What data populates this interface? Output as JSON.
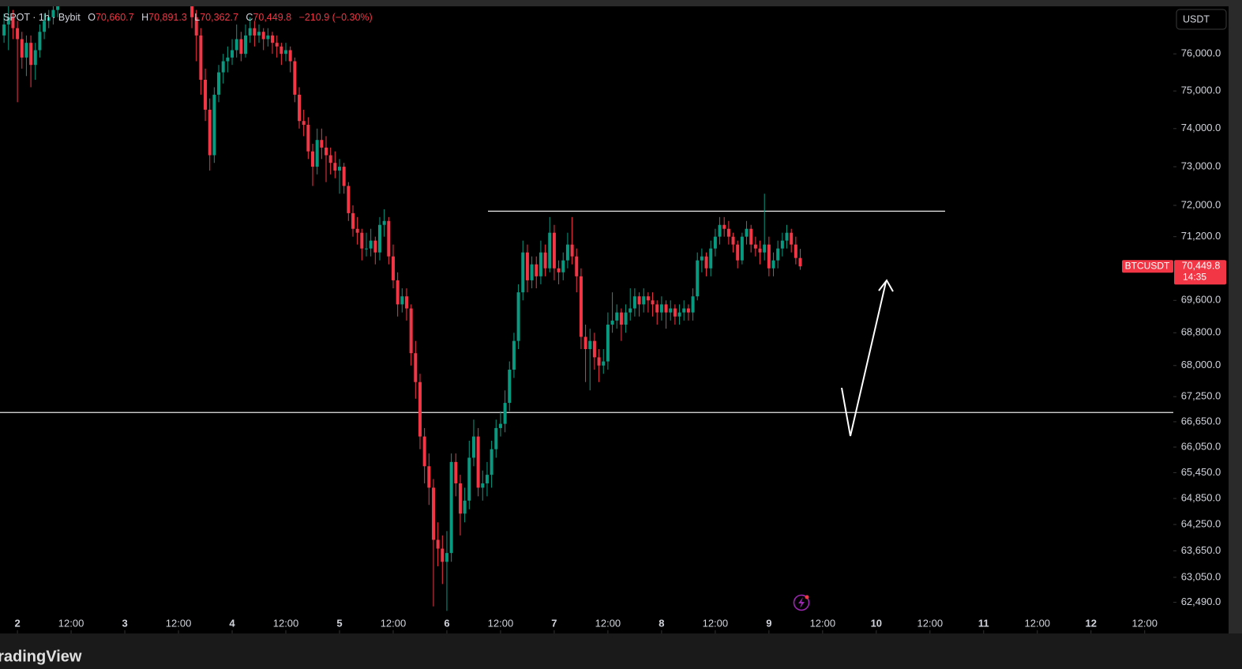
{
  "chart_data": {
    "type": "candlestick",
    "header": {
      "symbol": "SPOT · 1h · Bybit",
      "ohlc_letters": [
        "O",
        "H",
        "L",
        "C"
      ],
      "ohlc_texts": [
        "70,660.7",
        "70,891.3",
        "70,362.7",
        "70,449.8"
      ],
      "change": "−210.9 (−0.30%)"
    },
    "currency": "USDT",
    "brand": "TradingView",
    "log_scale": true,
    "up_color": "#089981",
    "down_color": "#f23645",
    "x": [
      -3,
      -2,
      -1,
      0,
      1,
      2,
      3,
      4,
      5,
      6,
      7,
      8,
      9,
      39,
      40,
      41,
      42,
      43,
      44,
      45,
      46,
      47,
      48,
      49,
      50,
      51,
      52,
      53,
      54,
      55,
      56,
      57,
      58,
      59,
      60,
      61,
      62,
      63,
      64,
      65,
      66,
      67,
      68,
      69,
      70,
      71,
      72,
      73,
      74,
      75,
      76,
      77,
      78,
      79,
      80,
      81,
      82,
      83,
      84,
      85,
      86,
      87,
      88,
      89,
      90,
      91,
      92,
      93,
      94,
      95,
      96,
      97,
      98,
      99,
      100,
      101,
      102,
      103,
      104,
      105,
      106,
      107,
      108,
      109,
      110,
      111,
      112,
      113,
      114,
      115,
      116,
      117,
      118,
      119,
      120,
      121,
      122,
      123,
      124,
      125,
      126,
      127,
      128,
      129,
      130,
      131,
      132,
      133,
      134,
      135,
      136,
      137,
      138,
      139,
      140,
      141,
      142,
      143,
      144,
      145,
      146,
      147,
      148,
      149,
      150,
      151,
      152,
      153,
      154,
      155,
      156,
      157,
      158,
      159,
      160,
      161,
      162,
      163,
      164,
      165,
      166,
      167,
      168,
      169,
      170,
      171,
      172,
      173,
      174,
      175
    ],
    "ohlc": [
      [
        76500,
        77100,
        76300,
        76800
      ],
      [
        76800,
        77300,
        76100,
        77000
      ],
      [
        77000,
        77200,
        76400,
        76700
      ],
      [
        76700,
        76900,
        74700,
        76400
      ],
      [
        76400,
        76600,
        75600,
        75900
      ],
      [
        75900,
        76500,
        75400,
        76300
      ],
      [
        76300,
        76500,
        75100,
        75700
      ],
      [
        75700,
        76300,
        75300,
        76100
      ],
      [
        76100,
        76800,
        75900,
        76600
      ],
      [
        76600,
        77100,
        76400,
        76900
      ],
      [
        76900,
        77200,
        76700,
        77000
      ],
      [
        77000,
        77400,
        76800,
        77200
      ],
      [
        77200,
        77600,
        77000,
        77400
      ],
      [
        77400,
        77800,
        76700,
        77000
      ],
      [
        77000,
        77200,
        75800,
        76500
      ],
      [
        76500,
        76700,
        74900,
        75300
      ],
      [
        75300,
        75600,
        74200,
        74500
      ],
      [
        74500,
        74800,
        72900,
        73300
      ],
      [
        73300,
        75100,
        73100,
        74900
      ],
      [
        74900,
        75700,
        74700,
        75500
      ],
      [
        75500,
        76000,
        75200,
        75800
      ],
      [
        75800,
        76200,
        75500,
        75900
      ],
      [
        75900,
        76400,
        75700,
        76100
      ],
      [
        76100,
        76800,
        75900,
        76400
      ],
      [
        76400,
        76600,
        75800,
        76000
      ],
      [
        76000,
        76800,
        75900,
        76500
      ],
      [
        76500,
        77000,
        76300,
        76700
      ],
      [
        76700,
        76900,
        76200,
        76500
      ],
      [
        76500,
        76800,
        76300,
        76600
      ],
      [
        76600,
        76700,
        76100,
        76400
      ],
      [
        76400,
        76700,
        76200,
        76500
      ],
      [
        76500,
        76600,
        76000,
        76300
      ],
      [
        76300,
        76500,
        75900,
        76200
      ],
      [
        76200,
        76300,
        75700,
        76000
      ],
      [
        76000,
        76300,
        75800,
        76100
      ],
      [
        76100,
        76200,
        75500,
        75800
      ],
      [
        75800,
        75900,
        74700,
        74900
      ],
      [
        74900,
        75100,
        74000,
        74200
      ],
      [
        74200,
        74500,
        73800,
        74100
      ],
      [
        74100,
        74300,
        73200,
        73400
      ],
      [
        73400,
        73600,
        72500,
        73000
      ],
      [
        73000,
        74000,
        72800,
        73700
      ],
      [
        73700,
        74000,
        73200,
        73500
      ],
      [
        73500,
        73800,
        72600,
        73300
      ],
      [
        73300,
        73500,
        72800,
        73100
      ],
      [
        73100,
        73400,
        72700,
        72900
      ],
      [
        72900,
        73200,
        72300,
        73000
      ],
      [
        73000,
        73100,
        72300,
        72500
      ],
      [
        72500,
        72600,
        71600,
        71800
      ],
      [
        71800,
        72000,
        71200,
        71400
      ],
      [
        71400,
        71700,
        71000,
        71300
      ],
      [
        71300,
        71400,
        70600,
        70900
      ],
      [
        70900,
        71300,
        70700,
        70900
      ],
      [
        70900,
        71400,
        70700,
        71100
      ],
      [
        71100,
        71200,
        70500,
        70800
      ],
      [
        70800,
        71700,
        70600,
        71500
      ],
      [
        71500,
        71900,
        71200,
        71600
      ],
      [
        71600,
        71700,
        70500,
        70700
      ],
      [
        70700,
        71000,
        69900,
        70100
      ],
      [
        70100,
        70300,
        69200,
        69500
      ],
      [
        69500,
        69900,
        69300,
        69700
      ],
      [
        69700,
        69900,
        69100,
        69400
      ],
      [
        69400,
        69500,
        68000,
        68300
      ],
      [
        68300,
        68600,
        67200,
        67600
      ],
      [
        67600,
        67800,
        66000,
        66300
      ],
      [
        66300,
        66500,
        65200,
        65600
      ],
      [
        65600,
        65900,
        64700,
        65100
      ],
      [
        65100,
        65300,
        62400,
        63900
      ],
      [
        63900,
        64300,
        63300,
        63700
      ],
      [
        63700,
        64000,
        62900,
        63400
      ],
      [
        63400,
        64100,
        62300,
        63600
      ],
      [
        63600,
        65900,
        63400,
        65700
      ],
      [
        65700,
        65900,
        64900,
        65200
      ],
      [
        65200,
        65400,
        64000,
        64500
      ],
      [
        64500,
        65100,
        64300,
        64800
      ],
      [
        64800,
        66200,
        64600,
        65800
      ],
      [
        65800,
        66700,
        65600,
        66300
      ],
      [
        66300,
        66500,
        64900,
        65100
      ],
      [
        65100,
        65500,
        64800,
        65200
      ],
      [
        65200,
        65700,
        64900,
        65400
      ],
      [
        65400,
        66200,
        65100,
        66000
      ],
      [
        66000,
        66700,
        65800,
        66500
      ],
      [
        66500,
        66900,
        66300,
        66600
      ],
      [
        66600,
        67400,
        66400,
        67100
      ],
      [
        67100,
        68100,
        66900,
        67900
      ],
      [
        67900,
        68800,
        67700,
        68600
      ],
      [
        68600,
        70000,
        68400,
        69800
      ],
      [
        69800,
        71100,
        69600,
        70800
      ],
      [
        70800,
        71000,
        69800,
        70100
      ],
      [
        70100,
        70700,
        69900,
        70500
      ],
      [
        70500,
        70700,
        69900,
        70200
      ],
      [
        70200,
        71100,
        70000,
        70800
      ],
      [
        70800,
        71000,
        70200,
        70400
      ],
      [
        70400,
        71700,
        70300,
        71300
      ],
      [
        71300,
        71500,
        70100,
        70400
      ],
      [
        70400,
        70600,
        70000,
        70300
      ],
      [
        70300,
        70800,
        70100,
        70600
      ],
      [
        70600,
        71300,
        70400,
        71000
      ],
      [
        71000,
        71700,
        70500,
        70700
      ],
      [
        70700,
        70900,
        69800,
        70200
      ],
      [
        70200,
        70400,
        68400,
        68700
      ],
      [
        68700,
        69000,
        67600,
        68400
      ],
      [
        68400,
        68900,
        67400,
        68600
      ],
      [
        68600,
        68800,
        67900,
        68200
      ],
      [
        68200,
        68400,
        67600,
        68000
      ],
      [
        68000,
        68400,
        67800,
        68100
      ],
      [
        68100,
        69300,
        67900,
        69000
      ],
      [
        69000,
        69800,
        68800,
        69100
      ],
      [
        69100,
        69500,
        68900,
        69300
      ],
      [
        69300,
        69400,
        68600,
        69000
      ],
      [
        69000,
        69500,
        68800,
        69300
      ],
      [
        69300,
        69900,
        69100,
        69400
      ],
      [
        69400,
        69900,
        69200,
        69700
      ],
      [
        69700,
        69800,
        69200,
        69500
      ],
      [
        69500,
        69900,
        69300,
        69700
      ],
      [
        69700,
        69800,
        69300,
        69600
      ],
      [
        69600,
        69800,
        69200,
        69500
      ],
      [
        69500,
        69600,
        69000,
        69300
      ],
      [
        69300,
        69700,
        69100,
        69500
      ],
      [
        69500,
        69600,
        68900,
        69300
      ],
      [
        69300,
        69600,
        69100,
        69400
      ],
      [
        69400,
        69500,
        69000,
        69200
      ],
      [
        69200,
        69500,
        69000,
        69300
      ],
      [
        69300,
        69600,
        69100,
        69400
      ],
      [
        69400,
        69500,
        69100,
        69300
      ],
      [
        69300,
        69900,
        69100,
        69700
      ],
      [
        69700,
        70800,
        69600,
        70600
      ],
      [
        70600,
        70900,
        70300,
        70700
      ],
      [
        70700,
        70800,
        70200,
        70400
      ],
      [
        70400,
        71100,
        70200,
        70900
      ],
      [
        70900,
        71400,
        70700,
        71200
      ],
      [
        71200,
        71700,
        71000,
        71500
      ],
      [
        71500,
        71700,
        71200,
        71400
      ],
      [
        71400,
        71600,
        71000,
        71200
      ],
      [
        71200,
        71300,
        70800,
        71000
      ],
      [
        71000,
        71100,
        70400,
        70600
      ],
      [
        70600,
        71300,
        70500,
        71200
      ],
      [
        71200,
        71600,
        71000,
        71400
      ],
      [
        71400,
        71500,
        70800,
        71000
      ],
      [
        71000,
        71200,
        70700,
        70900
      ],
      [
        70900,
        71100,
        70500,
        70800
      ],
      [
        70800,
        72300,
        70600,
        71000
      ],
      [
        71000,
        71200,
        70200,
        70400
      ],
      [
        70400,
        70800,
        70200,
        70600
      ],
      [
        70600,
        71100,
        70400,
        70900
      ],
      [
        70900,
        71300,
        70700,
        71100
      ],
      [
        71100,
        71500,
        70900,
        71300
      ],
      [
        71300,
        71400,
        70800,
        71000
      ],
      [
        71000,
        71200,
        70500,
        70660.7
      ],
      [
        70660.7,
        70891.3,
        70362.7,
        70449.8
      ]
    ],
    "xlim": [
      -3.9,
      258.4
    ],
    "xticks": [
      {
        "value": 0,
        "label": "2"
      },
      {
        "value": 12,
        "label": "12:00"
      },
      {
        "value": 24,
        "label": "3"
      },
      {
        "value": 36,
        "label": "12:00"
      },
      {
        "value": 48,
        "label": "4"
      },
      {
        "value": 60,
        "label": "12:00"
      },
      {
        "value": 72,
        "label": "5"
      },
      {
        "value": 84,
        "label": "12:00"
      },
      {
        "value": 96,
        "label": "6"
      },
      {
        "value": 108,
        "label": "12:00"
      },
      {
        "value": 120,
        "label": "7"
      },
      {
        "value": 132,
        "label": "12:00"
      },
      {
        "value": 144,
        "label": "8"
      },
      {
        "value": 156,
        "label": "12:00"
      },
      {
        "value": 168,
        "label": "9"
      },
      {
        "value": 180,
        "label": "12:00"
      },
      {
        "value": 192,
        "label": "10"
      },
      {
        "value": 204,
        "label": "12:00"
      },
      {
        "value": 216,
        "label": "11"
      },
      {
        "value": 228,
        "label": "12:00"
      },
      {
        "value": 240,
        "label": "12"
      },
      {
        "value": 252,
        "label": "12:00"
      }
    ],
    "ylim": [
      61800,
      77300
    ],
    "yticks": [
      {
        "value": 76000,
        "label": "76,000.0"
      },
      {
        "value": 75000,
        "label": "75,000.0"
      },
      {
        "value": 74000,
        "label": "74,000.0"
      },
      {
        "value": 73000,
        "label": "73,000.0"
      },
      {
        "value": 72000,
        "label": "72,000.0"
      },
      {
        "value": 71200,
        "label": "71,200.0"
      },
      {
        "value": 69600,
        "label": "69,600.0"
      },
      {
        "value": 68800,
        "label": "68,800.0"
      },
      {
        "value": 68000,
        "label": "68,000.0"
      },
      {
        "value": 67250,
        "label": "67,250.0"
      },
      {
        "value": 66650,
        "label": "66,650.0"
      },
      {
        "value": 66050,
        "label": "66,050.0"
      },
      {
        "value": 65450,
        "label": "65,450.0"
      },
      {
        "value": 64850,
        "label": "64,850.0"
      },
      {
        "value": 64250,
        "label": "64,250.0"
      },
      {
        "value": 63650,
        "label": "63,650.0"
      },
      {
        "value": 63050,
        "label": "63,050.0"
      },
      {
        "value": 62490,
        "label": "62,490.0"
      }
    ],
    "hlines": [
      71850,
      66870
    ],
    "last_price": {
      "symbol": "BTCUSDT",
      "value": 70449.8,
      "label": "70,449.8",
      "countdown": "14:35"
    }
  }
}
